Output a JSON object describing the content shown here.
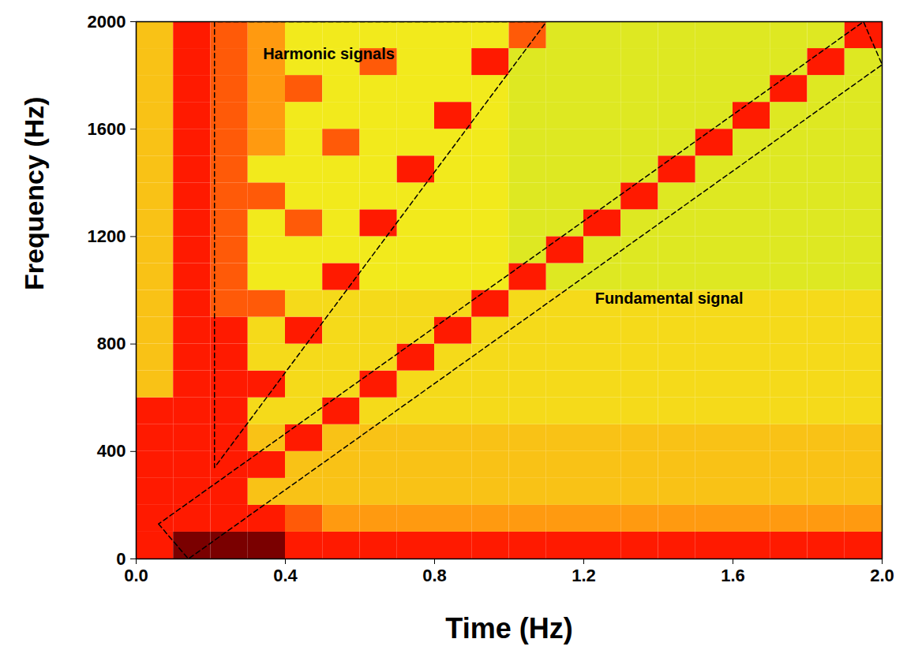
{
  "chart_data": {
    "type": "heatmap",
    "x_label": "Time (Hz)",
    "y_label": "Frequency (Hz)",
    "xlim": [
      0,
      2.0
    ],
    "ylim": [
      0,
      2000
    ],
    "xticks": [
      {
        "value": 0,
        "label": "0.0"
      },
      {
        "value": 0.4,
        "label": "0.4"
      },
      {
        "value": 0.8,
        "label": "0.8"
      },
      {
        "value": 1.2,
        "label": "1.2"
      },
      {
        "value": 1.6,
        "label": "1.6"
      },
      {
        "value": 2.0,
        "label": "2.0"
      }
    ],
    "yticks": [
      0,
      400,
      800,
      1200,
      1600,
      2000
    ],
    "x_bins": [
      0,
      0.1,
      0.2,
      0.3,
      0.4,
      0.5,
      0.6,
      0.7,
      0.8,
      0.9,
      1.0,
      1.1,
      1.2,
      1.3,
      1.4,
      1.5,
      1.6,
      1.7,
      1.8,
      1.9,
      2.0
    ],
    "y_bins": [
      0,
      100,
      200,
      300,
      400,
      500,
      600,
      700,
      800,
      900,
      1000,
      1100,
      1200,
      1300,
      1400,
      1500,
      1600,
      1700,
      1800,
      1900,
      2000
    ],
    "zlim": [
      0,
      4
    ],
    "cells": [
      [
        3,
        4,
        4,
        4,
        3,
        3,
        3,
        3,
        3,
        3,
        3,
        3,
        3,
        3,
        3,
        3,
        3,
        3,
        3,
        3
      ],
      [
        3,
        3,
        3,
        3,
        2.5,
        2,
        2,
        2,
        2,
        2,
        2,
        2,
        2,
        2,
        2,
        2,
        2,
        2,
        2,
        2
      ],
      [
        3,
        3,
        3,
        1.5,
        1.5,
        1.5,
        1.5,
        1.5,
        1.5,
        1.5,
        1.5,
        1.5,
        1.5,
        1.5,
        1.5,
        1.5,
        1.5,
        1.5,
        1.5,
        1.5
      ],
      [
        3,
        3,
        3,
        3,
        1.5,
        1.5,
        1.5,
        1.5,
        1.5,
        1.5,
        1.5,
        1.5,
        1.5,
        1.5,
        1.5,
        1.5,
        1.5,
        1.5,
        1.5,
        1.5
      ],
      [
        3,
        3,
        3,
        1.5,
        3,
        1.5,
        1.5,
        1.5,
        1.5,
        1.5,
        1.5,
        1.5,
        1.5,
        1.5,
        1.5,
        1.5,
        1.5,
        1.5,
        1.5,
        1.5
      ],
      [
        3,
        3,
        3,
        1.2,
        1.2,
        3,
        1.2,
        1.2,
        1.2,
        1.2,
        1.2,
        1.2,
        1.2,
        1.2,
        1.2,
        1.2,
        1.2,
        1.2,
        1.2,
        1.2
      ],
      [
        1.5,
        3,
        3,
        3,
        1.2,
        1.2,
        3,
        1.2,
        1.2,
        1.2,
        1.2,
        1.2,
        1.2,
        1.2,
        1.2,
        1.2,
        1.2,
        1.2,
        1.2,
        1.2
      ],
      [
        1.5,
        3,
        3,
        1.2,
        1.2,
        1.2,
        1.2,
        3,
        1.2,
        1.2,
        1.2,
        1.2,
        1.2,
        1.2,
        1.2,
        1.2,
        1.2,
        1.2,
        1.2,
        1.2
      ],
      [
        1.5,
        3,
        3,
        1.2,
        3,
        1.2,
        1.2,
        1.2,
        3,
        1.2,
        1.2,
        1.2,
        1.2,
        1.2,
        1.2,
        1.2,
        1.2,
        1.2,
        1.2,
        1.2
      ],
      [
        1.5,
        3,
        2.5,
        2.5,
        1.2,
        1.2,
        1.2,
        1.2,
        1.2,
        3,
        1.2,
        1.2,
        1.2,
        1.2,
        1.2,
        1.2,
        1.2,
        1.2,
        1.2,
        1.2
      ],
      [
        1.5,
        3,
        2.5,
        1,
        1,
        3,
        1,
        1,
        1,
        1,
        3,
        0.8,
        0.8,
        0.8,
        0.8,
        0.8,
        0.8,
        0.8,
        0.8,
        0.8
      ],
      [
        1.5,
        3,
        2.5,
        1,
        1,
        1,
        1,
        1,
        1,
        1,
        0.8,
        3,
        0.8,
        0.8,
        0.8,
        0.8,
        0.8,
        0.8,
        0.8,
        0.8
      ],
      [
        1.5,
        3,
        2.5,
        1,
        2.5,
        1,
        3,
        1,
        1,
        1,
        0.8,
        0.8,
        3,
        0.8,
        0.8,
        0.8,
        0.8,
        0.8,
        0.8,
        0.8
      ],
      [
        1.5,
        3,
        2.5,
        2.5,
        1,
        1,
        1,
        1,
        1,
        1,
        0.8,
        0.8,
        0.8,
        3,
        0.8,
        0.8,
        0.8,
        0.8,
        0.8,
        0.8
      ],
      [
        1.5,
        3,
        2.5,
        1,
        1,
        1,
        1,
        3,
        1,
        1,
        0.8,
        0.8,
        0.8,
        0.8,
        3,
        0.8,
        0.8,
        0.8,
        0.8,
        0.8
      ],
      [
        1.5,
        3,
        2.5,
        2,
        1,
        2.5,
        1,
        1,
        1,
        1,
        0.8,
        0.8,
        0.8,
        0.8,
        0.8,
        3,
        0.8,
        0.8,
        0.8,
        0.8
      ],
      [
        1.5,
        3,
        2.5,
        2,
        1,
        1,
        1,
        1,
        3,
        1,
        0.8,
        0.8,
        0.8,
        0.8,
        0.8,
        0.8,
        3,
        0.8,
        0.8,
        0.8
      ],
      [
        1.5,
        3,
        2.5,
        2,
        2.5,
        1,
        1,
        1,
        1,
        1,
        0.8,
        0.8,
        0.8,
        0.8,
        0.8,
        0.8,
        0.8,
        3,
        0.8,
        0.8
      ],
      [
        1.5,
        3,
        2.5,
        2,
        1,
        1,
        2.5,
        1,
        1,
        3,
        0.8,
        0.8,
        0.8,
        0.8,
        0.8,
        0.8,
        0.8,
        0.8,
        3,
        0.8
      ],
      [
        1.5,
        3,
        2.5,
        2,
        1,
        1,
        1,
        1,
        1,
        1,
        2.5,
        0.8,
        0.8,
        0.8,
        0.8,
        0.8,
        0.8,
        0.8,
        0.8,
        3
      ]
    ],
    "annotations": [
      {
        "text": "Harmonic signals",
        "x": 0.34,
        "y": 1880
      },
      {
        "text": "Fundamental signal",
        "x": 1.23,
        "y": 970
      }
    ],
    "boxes": [
      [
        [
          0.21,
          2000
        ],
        [
          0.21,
          340
        ],
        [
          1.1,
          2000
        ],
        [
          0.21,
          2000
        ]
      ],
      [
        [
          0.06,
          130
        ],
        [
          0.14,
          0
        ],
        [
          2.0,
          1840
        ],
        [
          1.95,
          2000
        ],
        [
          0.06,
          130
        ]
      ]
    ]
  }
}
